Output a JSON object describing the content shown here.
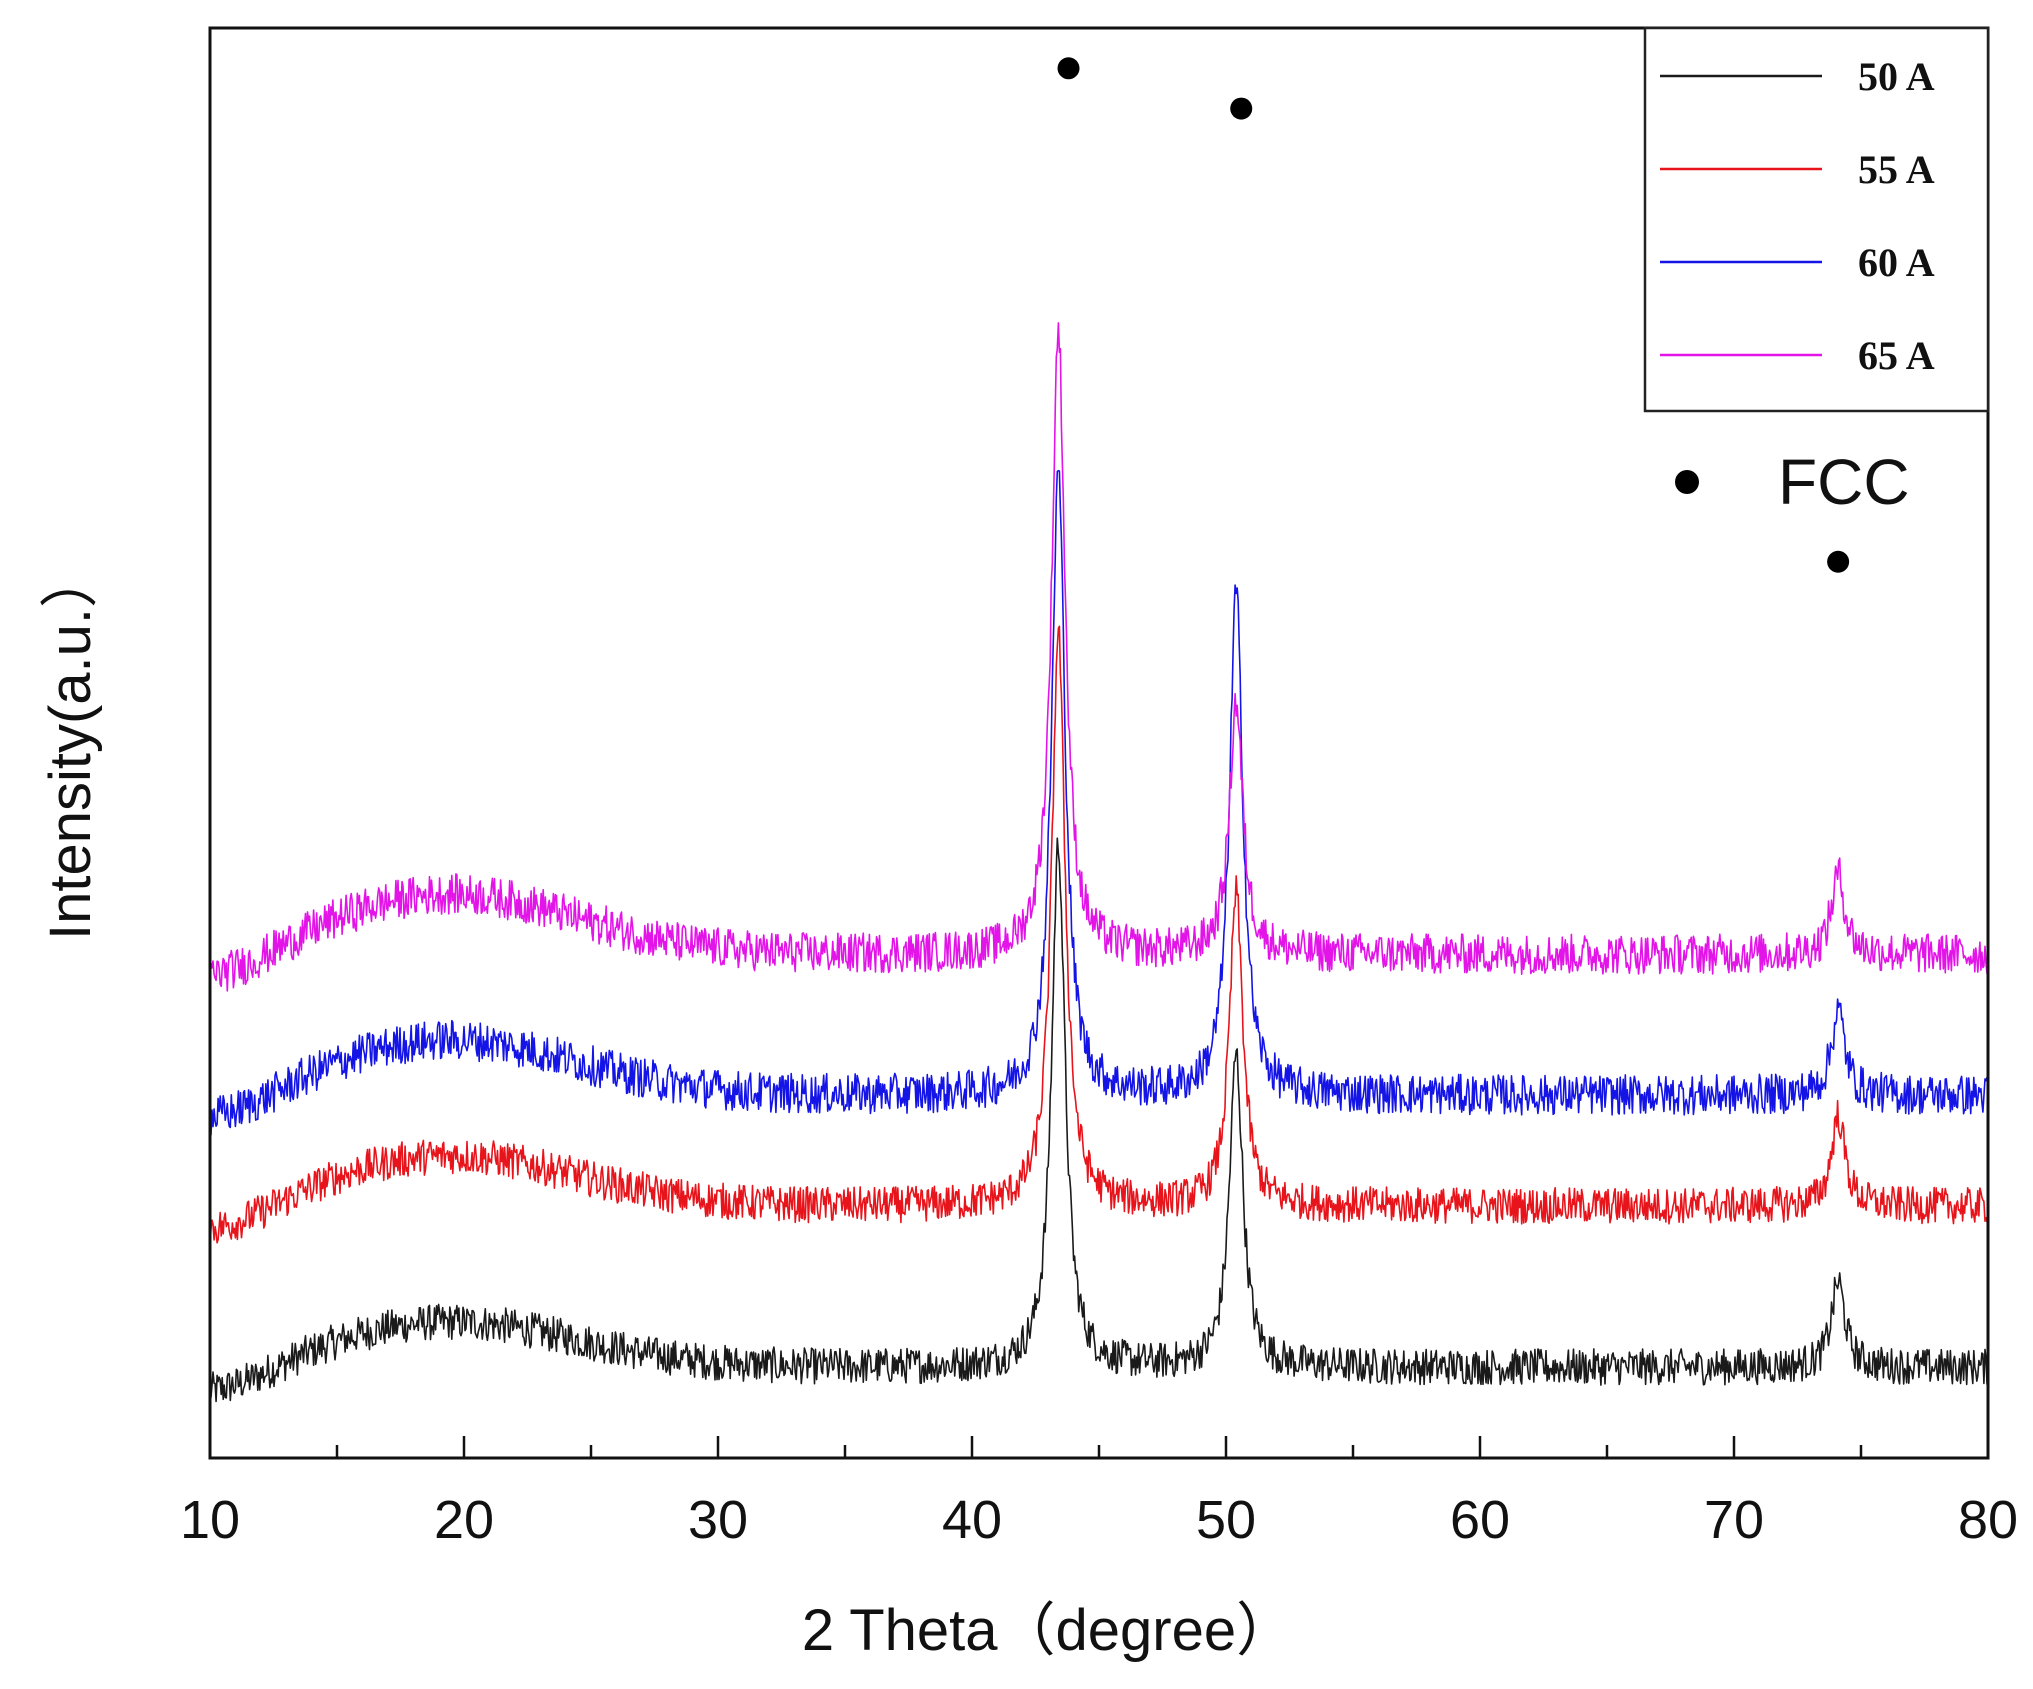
{
  "chart_data": {
    "type": "line",
    "title": "",
    "xlabel": "2 Theta（degree）",
    "ylabel": "Intensity(a.u.）",
    "xlim": [
      10,
      80
    ],
    "xticks": [
      10,
      20,
      30,
      40,
      50,
      60,
      70,
      80
    ],
    "xtick_labels": [
      "10",
      "20",
      "30",
      "40",
      "50",
      "60",
      "70",
      "80"
    ],
    "yticks_shown": false,
    "grid": false,
    "legend_position": "top-right",
    "series": [
      {
        "name": "50 A",
        "color": "#1a1a1a",
        "baseline": 0.09,
        "hump": 0.045,
        "noise": 0.018,
        "peaks": [
          {
            "x": 43.4,
            "height": 0.52
          },
          {
            "x": 50.4,
            "height": 0.31
          },
          {
            "x": 74.1,
            "height": 0.085
          }
        ]
      },
      {
        "name": "55 A",
        "color": "#e8141b",
        "baseline": 0.25,
        "hump": 0.05,
        "noise": 0.018,
        "peaks": [
          {
            "x": 43.4,
            "height": 0.57
          },
          {
            "x": 50.4,
            "height": 0.31
          },
          {
            "x": 74.1,
            "height": 0.09
          }
        ]
      },
      {
        "name": "60 A",
        "color": "#1414e6",
        "baseline": 0.36,
        "hump": 0.055,
        "noise": 0.02,
        "peaks": [
          {
            "x": 43.4,
            "height": 0.62
          },
          {
            "x": 50.4,
            "height": 0.5
          },
          {
            "x": 74.1,
            "height": 0.085
          }
        ]
      },
      {
        "name": "65 A",
        "color": "#e314e8",
        "baseline": 0.5,
        "hump": 0.06,
        "noise": 0.02,
        "peaks": [
          {
            "x": 43.4,
            "height": 0.62
          },
          {
            "x": 50.4,
            "height": 0.25
          },
          {
            "x": 74.1,
            "height": 0.08
          }
        ]
      }
    ],
    "annotations": {
      "phase_label": "FCC",
      "phase_markers": [
        {
          "x": 43.8,
          "y": 1.38
        },
        {
          "x": 50.6,
          "y": 1.34
        },
        {
          "x": 74.1,
          "y": 0.89
        }
      ]
    }
  }
}
